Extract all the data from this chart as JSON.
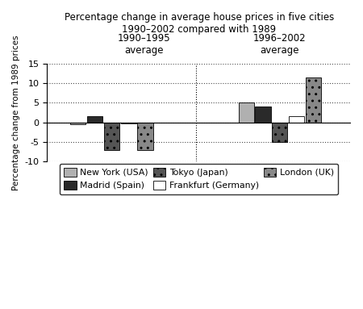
{
  "title_line1": "Percentage change in average house prices in five cities",
  "title_line2": "1990–2002 compared with 1989",
  "group_label1": "1990–1995\naverage",
  "group_label2": "1996–2002\naverage",
  "cities": [
    "New York (USA)",
    "Madrid (Spain)",
    "Tokyo (Japan)",
    "Frankfurt (Germany)",
    "London (UK)"
  ],
  "values_group1": [
    -0.5,
    1.5,
    -7.0,
    -0.3,
    -7.0
  ],
  "values_group2": [
    5.0,
    4.0,
    -5.0,
    1.5,
    11.5
  ],
  "ylim": [
    -10,
    15
  ],
  "yticks": [
    -10,
    -5,
    0,
    5,
    10,
    15
  ],
  "ylabel": "Percentage change from 1989 prices",
  "bar_colors": [
    "#b0b0b0",
    "#2a2a2a",
    "#555555",
    "#ffffff",
    "#888888"
  ],
  "bar_hatches": [
    null,
    null,
    "..",
    null,
    ".."
  ],
  "legend_labels_row1": [
    "New York (USA)",
    "Madrid (Spain)",
    "Tokyo (Japan)"
  ],
  "legend_labels_row2": [
    "Frankfurt (Germany)",
    "London (UK)"
  ],
  "background_color": "#ffffff"
}
